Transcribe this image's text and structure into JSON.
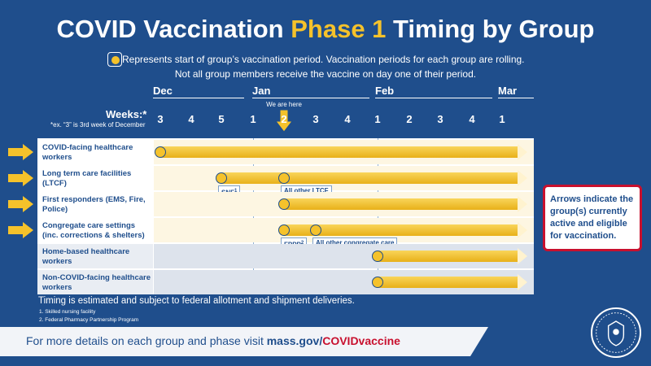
{
  "title": {
    "part1": "COVID Vaccination",
    "highlight": "Phase 1",
    "part2": "Timing by Group"
  },
  "legend": {
    "line1": "Represents start of group’s vaccination period. Vaccination periods for each group are rolling.",
    "line2": "Not all group members receive the vaccine on day one of their period."
  },
  "months": [
    "Dec",
    "Jan",
    "Feb",
    "Mar"
  ],
  "weeks_label": "Weeks:*",
  "weeks_note": "*ex. “3” is 3rd week of December",
  "weeks": [
    "3",
    "4",
    "5",
    "1",
    "2",
    "3",
    "4",
    "1",
    "2",
    "3",
    "4",
    "1"
  ],
  "current_week_index": 4,
  "here_label": "We are here",
  "rows": [
    {
      "label": "COVID-facing healthcare workers",
      "active": true,
      "start_week_index": 0,
      "tags": []
    },
    {
      "label": "Long term care facilities (LTCF)",
      "active": true,
      "start_week_index": 2,
      "tags": [
        {
          "text": "SNF",
          "sup": "1",
          "week_index": 2
        },
        {
          "text": "All other LTCF",
          "sup": "",
          "week_index": 4
        }
      ]
    },
    {
      "label": "First responders (EMS, Fire, Police)",
      "active": true,
      "start_week_index": 4,
      "tags": []
    },
    {
      "label": "Congregate care settings (inc. corrections & shelters)",
      "active": true,
      "start_week_index": 4,
      "tags": [
        {
          "text": "FPPP",
          "sup": "2",
          "week_index": 4
        },
        {
          "text": "All other congregate care",
          "sup": "",
          "week_index": 5
        }
      ]
    },
    {
      "label": "Home-based healthcare workers",
      "active": false,
      "start_week_index": 7,
      "tags": []
    },
    {
      "label": "Non-COVID-facing healthcare workers",
      "active": false,
      "start_week_index": 7,
      "tags": []
    }
  ],
  "callout": "Arrows indicate the group(s) currently active and eligible for vaccination.",
  "timing_note": "Timing is estimated and subject to federal allotment and shipment deliveries.",
  "footnotes": [
    "1.  Skilled nursing facility",
    "2.  Federal Pharmacy Partnership Program"
  ],
  "footer": {
    "text": "For more details on each group and phase visit",
    "url_prefix": "mass.gov/",
    "url_highlight": "COVIDvaccine"
  },
  "colors": {
    "background": "#1f4e8c",
    "accent": "#f5c22b",
    "callout_border": "#c8102e"
  }
}
